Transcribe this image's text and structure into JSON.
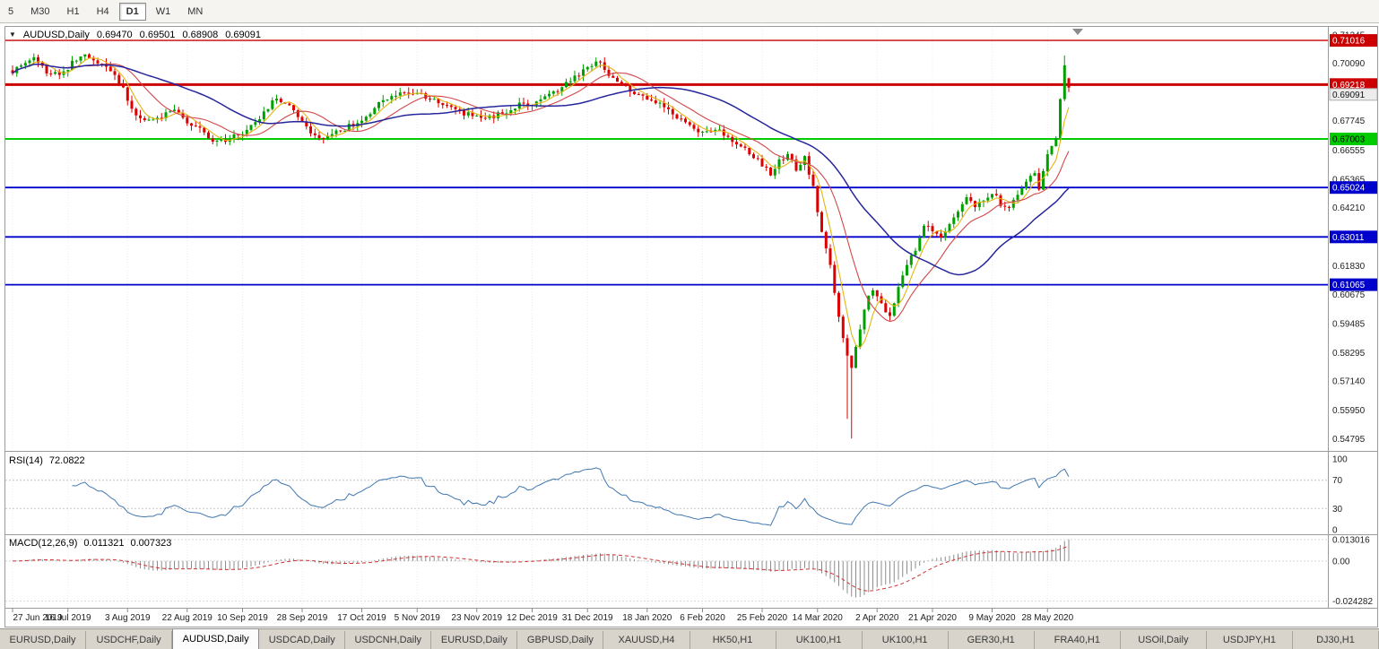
{
  "toolbar": {
    "periods": [
      {
        "label": "5",
        "active": false
      },
      {
        "label": "M30",
        "active": false
      },
      {
        "label": "H1",
        "active": false
      },
      {
        "label": "H4",
        "active": false
      },
      {
        "label": "D1",
        "active": true
      },
      {
        "label": "W1",
        "active": false
      },
      {
        "label": "MN",
        "active": false
      }
    ]
  },
  "chart_header": {
    "symbol": "AUDUSD,Daily",
    "open": "0.69470",
    "high": "0.69501",
    "low": "0.68908",
    "close": "0.69091"
  },
  "chart_data": {
    "type": "candlestick",
    "symbol": "AUDUSD",
    "timeframe": "Daily",
    "colors": {
      "candle_up": "#00A000",
      "candle_down": "#DD0000",
      "rsi_line": "#4077b0",
      "macd_bar": "#8c8c8c",
      "macd_signal": "#cc3333",
      "grid": "#ececec"
    },
    "price_scale": {
      "top": 0.7153,
      "bottom": 0.5437,
      "ticks": [
        "0.71245",
        "0.70090",
        "0.67745",
        "0.66555",
        "0.65365",
        "0.64210",
        "0.61830",
        "0.60675",
        "0.59485",
        "0.58295",
        "0.57140",
        "0.55950",
        "0.54795"
      ]
    },
    "current_price": "0.69091",
    "levels": [
      {
        "value": 0.71016,
        "label": "0.71016",
        "color": "#cc0000",
        "text_color": "#ffffff",
        "width": 1.4
      },
      {
        "value": 0.69218,
        "label": "0.69218",
        "color": "#cc0000",
        "text_color": "#ffffff",
        "width": 3
      },
      {
        "value": 0.67003,
        "label": "0.67003",
        "color": "#00cc00",
        "text_color": "#000000",
        "width": 2
      },
      {
        "value": 0.65024,
        "label": "0.65024",
        "color": "#0000cc",
        "text_color": "#ffffff",
        "width": 1.8
      },
      {
        "value": 0.63011,
        "label": "0.63011",
        "color": "#0000cc",
        "text_color": "#ffffff",
        "width": 1.8
      },
      {
        "value": 0.61065,
        "label": "0.61065",
        "color": "#0000cc",
        "text_color": "#ffffff",
        "width": 1.8
      }
    ],
    "x_axis": {
      "labels": [
        {
          "text": "27 Jun 2019",
          "index": 0
        },
        {
          "text": "16 Jul 2019",
          "index": 13
        },
        {
          "text": "3 Aug 2019",
          "index": 27
        },
        {
          "text": "22 Aug 2019",
          "index": 41
        },
        {
          "text": "10 Sep 2019",
          "index": 54
        },
        {
          "text": "28 Sep 2019",
          "index": 68
        },
        {
          "text": "17 Oct 2019",
          "index": 82
        },
        {
          "text": "5 Nov 2019",
          "index": 95
        },
        {
          "text": "23 Nov 2019",
          "index": 109
        },
        {
          "text": "12 Dec 2019",
          "index": 122
        },
        {
          "text": "31 Dec 2019",
          "index": 135
        },
        {
          "text": "18 Jan 2020",
          "index": 149
        },
        {
          "text": "6 Feb 2020",
          "index": 162
        },
        {
          "text": "25 Feb 2020",
          "index": 176
        },
        {
          "text": "14 Mar 2020",
          "index": 189
        },
        {
          "text": "2 Apr 2020",
          "index": 203
        },
        {
          "text": "21 Apr 2020",
          "index": 216
        },
        {
          "text": "9 May 2020",
          "index": 230
        },
        {
          "text": "28 May 2020",
          "index": 243
        }
      ]
    },
    "candles": {
      "count": 249,
      "noise": 0.0024,
      "noise_seed": 42,
      "anchor_format": "[candle_index, close_price]",
      "close_anchors": [
        [
          0,
          0.698
        ],
        [
          2,
          0.7005
        ],
        [
          5,
          0.7022
        ],
        [
          8,
          0.6978
        ],
        [
          11,
          0.696
        ],
        [
          14,
          0.701
        ],
        [
          17,
          0.7038
        ],
        [
          20,
          0.7008
        ],
        [
          23,
          0.6978
        ],
        [
          26,
          0.69
        ],
        [
          29,
          0.68
        ],
        [
          32,
          0.6768
        ],
        [
          35,
          0.6792
        ],
        [
          38,
          0.681
        ],
        [
          41,
          0.6772
        ],
        [
          44,
          0.6742
        ],
        [
          47,
          0.67
        ],
        [
          50,
          0.6688
        ],
        [
          54,
          0.673
        ],
        [
          58,
          0.6788
        ],
        [
          62,
          0.6868
        ],
        [
          65,
          0.6845
        ],
        [
          68,
          0.6768
        ],
        [
          71,
          0.6712
        ],
        [
          74,
          0.6702
        ],
        [
          78,
          0.6745
        ],
        [
          82,
          0.6768
        ],
        [
          85,
          0.6832
        ],
        [
          88,
          0.6865
        ],
        [
          92,
          0.6885
        ],
        [
          95,
          0.689
        ],
        [
          99,
          0.6862
        ],
        [
          103,
          0.6822
        ],
        [
          107,
          0.68
        ],
        [
          111,
          0.6788
        ],
        [
          115,
          0.6805
        ],
        [
          119,
          0.6838
        ],
        [
          122,
          0.6842
        ],
        [
          126,
          0.688
        ],
        [
          130,
          0.6925
        ],
        [
          133,
          0.6965
        ],
        [
          135,
          0.6998
        ],
        [
          137,
          0.702
        ],
        [
          139,
          0.6985
        ],
        [
          142,
          0.6935
        ],
        [
          145,
          0.6895
        ],
        [
          149,
          0.6868
        ],
        [
          152,
          0.6852
        ],
        [
          155,
          0.68
        ],
        [
          158,
          0.6762
        ],
        [
          162,
          0.672
        ],
        [
          165,
          0.6742
        ],
        [
          168,
          0.6712
        ],
        [
          171,
          0.6672
        ],
        [
          174,
          0.6622
        ],
        [
          176,
          0.6598
        ],
        [
          178,
          0.6552
        ],
        [
          180,
          0.6612
        ],
        [
          182,
          0.6638
        ],
        [
          184,
          0.6578
        ],
        [
          186,
          0.6632
        ],
        [
          188,
          0.6498
        ],
        [
          190,
          0.6328
        ],
        [
          192,
          0.6178
        ],
        [
          194,
          0.5988
        ],
        [
          196,
          0.5808
        ],
        [
          197,
          0.5768
        ],
        [
          198,
          0.5858
        ],
        [
          200,
          0.6012
        ],
        [
          202,
          0.6088
        ],
        [
          204,
          0.6022
        ],
        [
          206,
          0.5968
        ],
        [
          208,
          0.6092
        ],
        [
          210,
          0.6178
        ],
        [
          212,
          0.6252
        ],
        [
          214,
          0.6348
        ],
        [
          216,
          0.6328
        ],
        [
          218,
          0.6288
        ],
        [
          220,
          0.6352
        ],
        [
          222,
          0.6408
        ],
        [
          224,
          0.6452
        ],
        [
          226,
          0.6428
        ],
        [
          228,
          0.6452
        ],
        [
          230,
          0.6482
        ],
        [
          232,
          0.6438
        ],
        [
          234,
          0.6428
        ],
        [
          236,
          0.6468
        ],
        [
          238,
          0.6528
        ],
        [
          240,
          0.6558
        ],
        [
          241,
          0.6488
        ],
        [
          243,
          0.6632
        ],
        [
          245,
          0.6708
        ],
        [
          246,
          0.6868
        ],
        [
          247,
          0.6998
        ],
        [
          248,
          0.69091
        ]
      ],
      "high_overrides": {
        "17": 0.7042,
        "137": 0.7032,
        "247": 0.704
      },
      "low_overrides": {
        "196": 0.556,
        "197": 0.548
      },
      "last_ohlc": [
        0.6947,
        0.69501,
        0.68908,
        0.69091
      ]
    },
    "moving_averages": [
      {
        "period": 5,
        "color": "#e5b413",
        "width": 1.1
      },
      {
        "period": 13,
        "color": "#d2484a",
        "width": 1.1
      },
      {
        "period": 34,
        "color": "#26269c",
        "width": 1.5
      }
    ],
    "rsi": {
      "label": "RSI(14)",
      "value": "72.0822",
      "period": 14,
      "scale": [
        {
          "value": 100,
          "label": "100"
        },
        {
          "value": 70,
          "label": "70"
        },
        {
          "value": 30,
          "label": "30"
        },
        {
          "value": 0,
          "label": "0"
        }
      ],
      "guide_levels": [
        70,
        30
      ]
    },
    "macd": {
      "label": "MACD(12,26,9)",
      "main_value": "0.011321",
      "signal_value": "0.007323",
      "fast": 12,
      "slow": 26,
      "signal": 9,
      "scale": [
        {
          "value": 0.013016,
          "label": "0.013016"
        },
        {
          "value": 0,
          "label": "0.00"
        },
        {
          "value": -0.024282,
          "label": "-0.024282"
        }
      ]
    }
  },
  "bottom_tabs": {
    "items": [
      {
        "label": "EURUSD,Daily",
        "active": false
      },
      {
        "label": "USDCHF,Daily",
        "active": false
      },
      {
        "label": "AUDUSD,Daily",
        "active": true
      },
      {
        "label": "USDCAD,Daily",
        "active": false
      },
      {
        "label": "USDCNH,Daily",
        "active": false
      },
      {
        "label": "EURUSD,Daily",
        "active": false
      },
      {
        "label": "GBPUSD,Daily",
        "active": false
      },
      {
        "label": "XAUUSD,H4",
        "active": false
      },
      {
        "label": "HK50,H1",
        "active": false
      },
      {
        "label": "UK100,H1",
        "active": false
      },
      {
        "label": "UK100,H1",
        "active": false
      },
      {
        "label": "GER30,H1",
        "active": false
      },
      {
        "label": "FRA40,H1",
        "active": false
      },
      {
        "label": "USOil,Daily",
        "active": false
      },
      {
        "label": "USDJPY,H1",
        "active": false
      },
      {
        "label": "DJ30,H1",
        "active": false
      }
    ]
  }
}
